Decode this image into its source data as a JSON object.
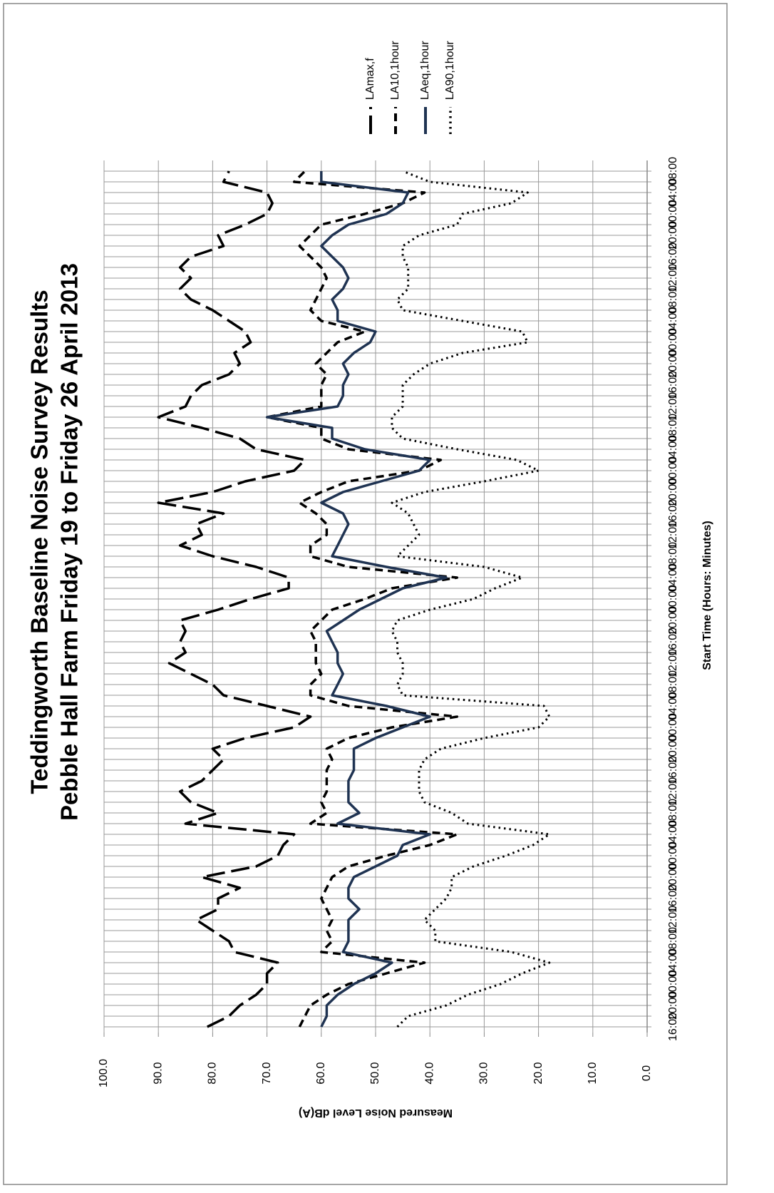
{
  "chart_data": {
    "type": "line",
    "title": "Teddingworth Baseline Noise Survey Results",
    "subtitle": "Pebble Hall Farm Friday 19 to Friday 26 April 2013",
    "x_label": "Start Time (Hours: Minutes)",
    "y_label": "Measured Noise Level dB(A)",
    "categories": [
      "16:00",
      null,
      "20:00",
      null,
      "00:00",
      null,
      "04:00",
      null,
      "08:00",
      null,
      "12:00",
      null,
      "16:00",
      null,
      "20:00",
      null,
      "00:00",
      null,
      "04:00",
      null,
      "08:00",
      null,
      "12:00",
      null,
      "16:00",
      null,
      "20:00",
      null,
      "00:00",
      null,
      "04:00",
      null,
      "08:00",
      null,
      "12:00",
      null,
      "16:00",
      null,
      "20:00",
      null,
      "00:00",
      null,
      "04:00",
      null,
      "08:00",
      null,
      "12:00",
      null,
      "16:00",
      null,
      "20:00",
      null,
      "00:00",
      null,
      "04:00",
      null,
      "08:00",
      null,
      "12:00",
      null,
      "16:00",
      null,
      "20:00",
      null,
      "00:00",
      null,
      "04:00",
      null,
      "08:00",
      null,
      "12:00",
      null,
      "16:00",
      null,
      "20:00",
      null,
      "00:00",
      null,
      "04:00",
      null,
      "08:00"
    ],
    "ylim": [
      0,
      100
    ],
    "yticks": [
      {
        "value": 0,
        "label": "0.0"
      },
      {
        "value": 10,
        "label": "10.0"
      },
      {
        "value": 20,
        "label": "20.0"
      },
      {
        "value": 30,
        "label": "30.0"
      },
      {
        "value": 40,
        "label": "40.0"
      },
      {
        "value": 50,
        "label": "50.0"
      },
      {
        "value": 60,
        "label": "60.0"
      },
      {
        "value": 70,
        "label": "70.0"
      },
      {
        "value": 80,
        "label": "80.0"
      },
      {
        "value": 90,
        "label": "90.0"
      },
      {
        "value": 100,
        "label": "100.0"
      }
    ],
    "grid": true,
    "legend": "top",
    "series": [
      {
        "name": "LAmax,f",
        "color": "#000000",
        "dash": "long-dash",
        "values": [
          81,
          77,
          75,
          72,
          70,
          70,
          68,
          76,
          77,
          80,
          83,
          79,
          79,
          75,
          82,
          72,
          68,
          67,
          65,
          85,
          79,
          84,
          86,
          82,
          80,
          78,
          80,
          74,
          65,
          62,
          70,
          78,
          80,
          84,
          88,
          85,
          86,
          85,
          86,
          79,
          73,
          66,
          66,
          72,
          80,
          86,
          82,
          83,
          78,
          90,
          80,
          74,
          65,
          63,
          72,
          75,
          82,
          90,
          85,
          84,
          82,
          77,
          75,
          76,
          73,
          74,
          77,
          80,
          84,
          86,
          84,
          86,
          84,
          78,
          79,
          74,
          70,
          69,
          70,
          78,
          77
        ]
      },
      {
        "name": "LA10,1hour",
        "color": "#000000",
        "dash": "dash",
        "values": [
          64,
          63,
          62,
          59,
          55,
          48,
          41,
          60,
          58,
          59,
          58,
          59,
          60,
          59,
          58,
          55,
          48,
          40,
          35,
          62,
          59,
          60,
          59,
          59,
          59,
          58,
          59,
          55,
          47,
          35,
          55,
          62,
          62,
          60,
          61,
          61,
          61,
          62,
          60,
          58,
          52,
          47,
          35,
          55,
          62,
          62,
          59,
          59,
          61,
          64,
          60,
          55,
          42,
          38,
          55,
          60,
          60,
          70,
          60,
          60,
          60,
          59,
          61,
          59,
          57,
          52,
          60,
          62,
          61,
          60,
          59,
          60,
          62,
          64,
          62,
          60,
          52,
          45,
          41,
          65,
          63
        ]
      },
      {
        "name": "LAeq,1hour",
        "color": "#1f3352",
        "dash": "solid",
        "values": [
          60,
          59,
          59,
          57,
          54,
          50,
          47,
          56,
          55,
          55,
          55,
          53,
          55,
          55,
          54,
          50,
          46,
          45,
          40,
          57,
          53,
          55,
          55,
          55,
          54,
          54,
          54,
          50,
          45,
          40,
          48,
          58,
          57,
          56,
          57,
          57,
          58,
          59,
          56,
          53,
          49,
          45,
          37,
          48,
          58,
          57,
          56,
          55,
          56,
          60,
          56,
          49,
          42,
          40,
          52,
          58,
          58,
          70,
          57,
          56,
          56,
          55,
          56,
          54,
          51,
          50,
          57,
          57,
          58,
          56,
          55,
          56,
          58,
          60,
          58,
          55,
          48,
          45,
          44,
          60,
          60
        ]
      },
      {
        "name": "LA90,1hour",
        "color": "#000000",
        "dash": "dot",
        "values": [
          46,
          44,
          37,
          33,
          27,
          23,
          18,
          25,
          39,
          39,
          41,
          39,
          37,
          36,
          36,
          32,
          26,
          21,
          18,
          33,
          36,
          41,
          42,
          42,
          42,
          41,
          38,
          30,
          20,
          18,
          19,
          45,
          46,
          45,
          45,
          46,
          46,
          47,
          46,
          40,
          32,
          28,
          23,
          30,
          46,
          44,
          42,
          43,
          44,
          47,
          41,
          30,
          20,
          24,
          35,
          45,
          47,
          47,
          45,
          45,
          45,
          43,
          40,
          34,
          22,
          23,
          34,
          45,
          46,
          44,
          44,
          44,
          45,
          45,
          42,
          35,
          34,
          25,
          22,
          40,
          45
        ]
      }
    ]
  }
}
